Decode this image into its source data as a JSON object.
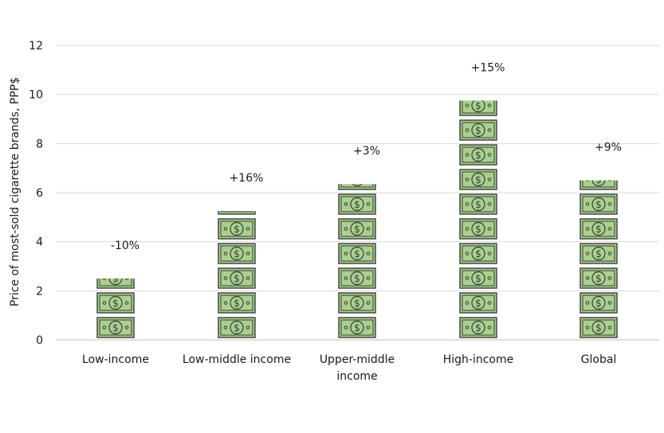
{
  "chart_data": {
    "type": "bar",
    "ylabel": "Price of most-sold cigarette brands, PPP$",
    "ylim": [
      0,
      12
    ],
    "yticks": [
      "0",
      "2",
      "4",
      "6",
      "8",
      "10",
      "12"
    ],
    "grid": true,
    "categories": [
      [
        "Low-income"
      ],
      [
        "Low-middle income"
      ],
      [
        "Upper-middle",
        "income"
      ],
      [
        "High-income"
      ],
      [
        "Global"
      ]
    ],
    "values": [
      2.5,
      5.25,
      6.35,
      9.75,
      6.5
    ],
    "annotations": [
      "-10%",
      "+16%",
      "+3%",
      "+15%",
      "+9%"
    ],
    "marker_icon": "dollar-bill-icon",
    "colors": {
      "bill_fill": "#a9d18e",
      "bill_stroke": "#3b3b3b",
      "grid": "#d9d9d9",
      "axis": "#bfbfbf"
    }
  }
}
